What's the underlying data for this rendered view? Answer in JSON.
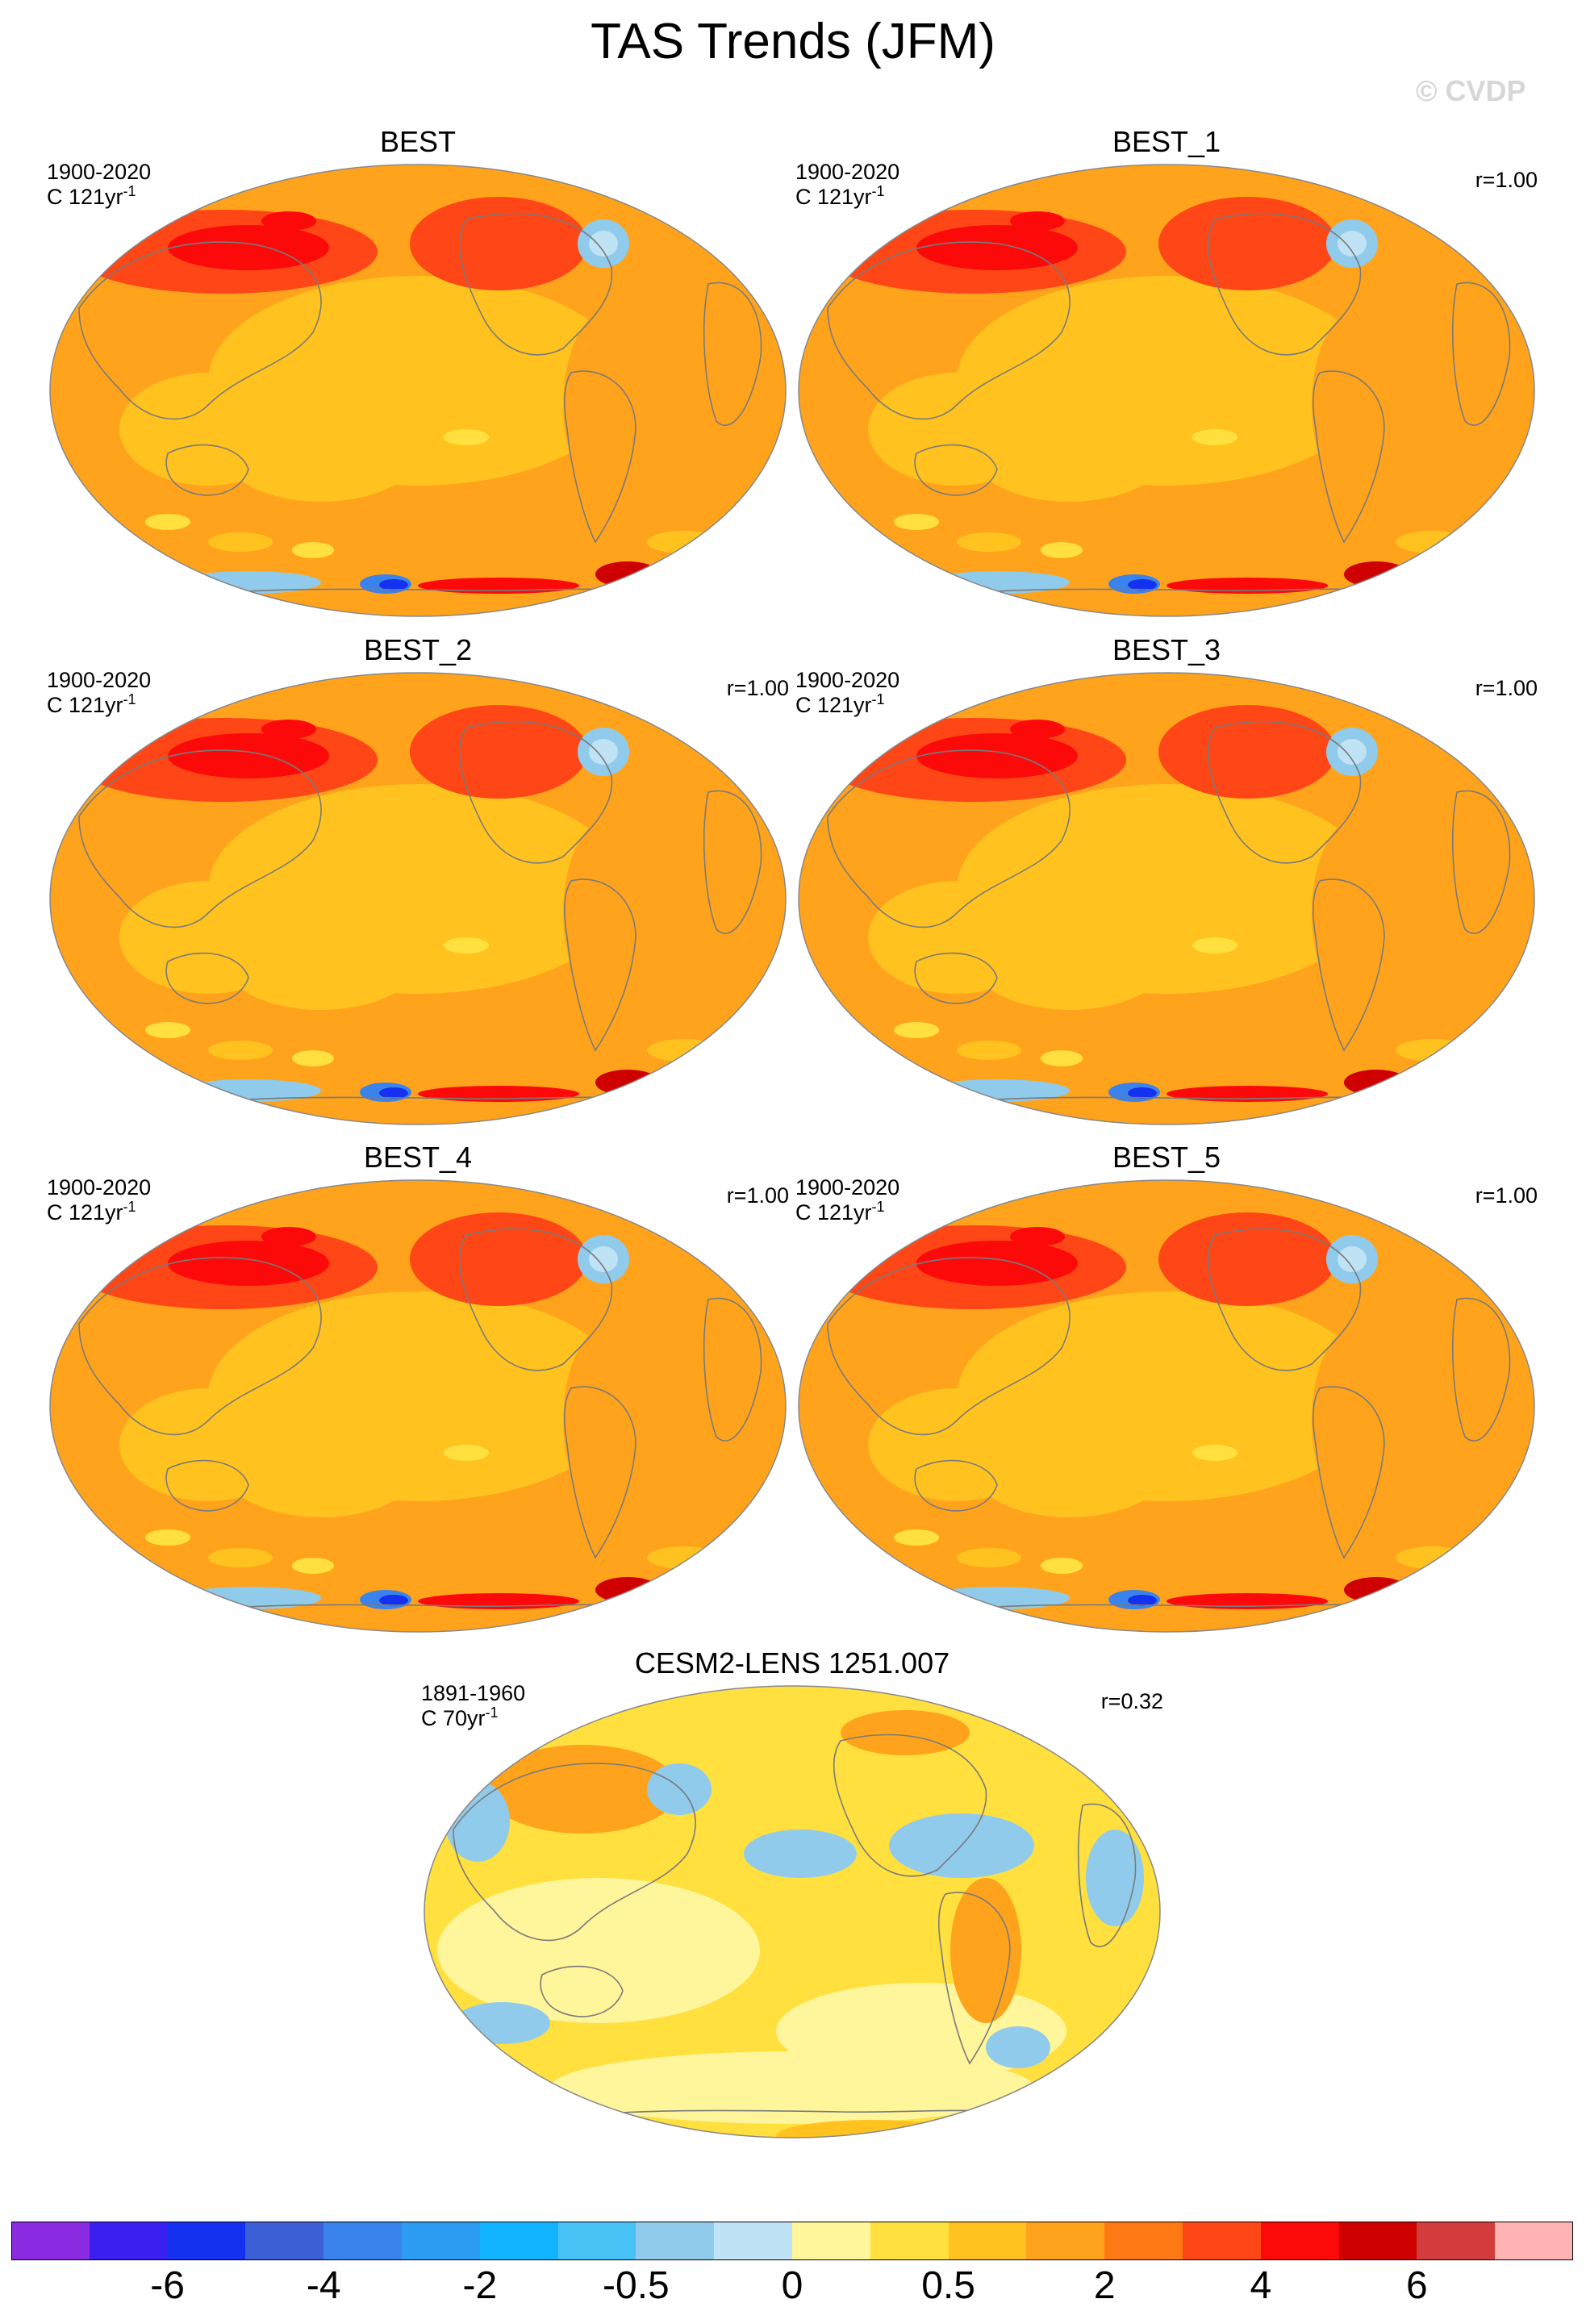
{
  "title": "TAS Trends (JFM)",
  "watermark": "© CVDP",
  "panels": [
    {
      "title": "BEST",
      "period": "1900-2020",
      "units_prefix": "C 121yr",
      "units_exp": "-1",
      "corr": "",
      "style": "obs"
    },
    {
      "title": "BEST_1",
      "period": "1900-2020",
      "units_prefix": "C 121yr",
      "units_exp": "-1",
      "corr": "r=1.00",
      "style": "obs"
    },
    {
      "title": "BEST_2",
      "period": "1900-2020",
      "units_prefix": "C 121yr",
      "units_exp": "-1",
      "corr": "r=1.00",
      "style": "obs"
    },
    {
      "title": "BEST_3",
      "period": "1900-2020",
      "units_prefix": "C 121yr",
      "units_exp": "-1",
      "corr": "r=1.00",
      "style": "obs"
    },
    {
      "title": "BEST_4",
      "period": "1900-2020",
      "units_prefix": "C 121yr",
      "units_exp": "-1",
      "corr": "r=1.00",
      "style": "obs"
    },
    {
      "title": "BEST_5",
      "period": "1900-2020",
      "units_prefix": "C 121yr",
      "units_exp": "-1",
      "corr": "r=1.00",
      "style": "obs"
    },
    {
      "title": "CESM2-LENS 1251.007",
      "period": "1891-1960",
      "units_prefix": "C 70yr",
      "units_exp": "-1",
      "corr": "r=0.32",
      "style": "model"
    }
  ],
  "colorbar": {
    "colors": [
      "#8a2be2",
      "#3a1ff0",
      "#1430f0",
      "#3d5fd6",
      "#3a82ec",
      "#2b9cf2",
      "#12b4ff",
      "#49c3f5",
      "#90cbec",
      "#bfe2f5",
      "#fff59a",
      "#ffe03e",
      "#ffc21e",
      "#ffa31c",
      "#ff7a14",
      "#ff4616",
      "#fc0a0a",
      "#cf0000",
      "#d23c3c",
      "#ffb3b3"
    ],
    "tick_labels": [
      "-6",
      "-4",
      "-2",
      "-0.5",
      "0",
      "0.5",
      "2",
      "4",
      "6"
    ]
  }
}
